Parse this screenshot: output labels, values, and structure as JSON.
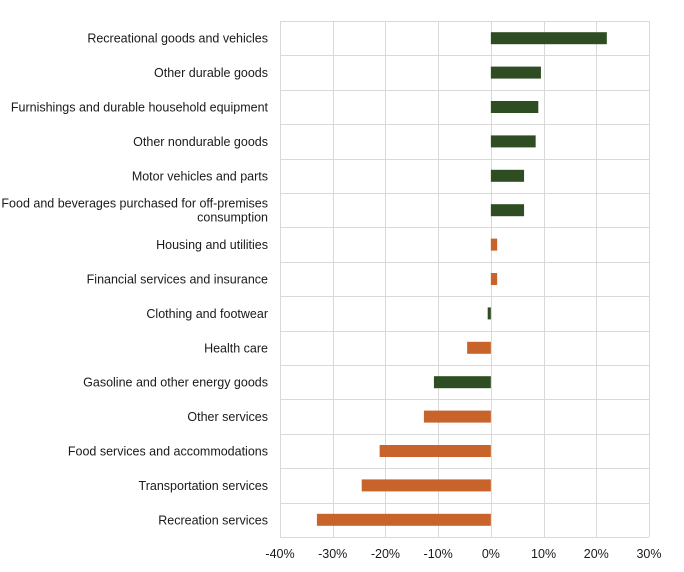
{
  "chart_data": {
    "type": "bar",
    "orientation": "horizontal",
    "title": "",
    "xlabel": "",
    "ylabel": "",
    "xlim": [
      -0.4,
      0.3
    ],
    "x_ticks": [
      -0.4,
      -0.3,
      -0.2,
      -0.1,
      0.0,
      0.1,
      0.2,
      0.3
    ],
    "x_tick_labels": [
      "-40%",
      "-30%",
      "-20%",
      "-10%",
      "0%",
      "10%",
      "20%",
      "30%"
    ],
    "grid": true,
    "legend": "none",
    "colors": {
      "goods": "#2e4d23",
      "services": "#c8632b"
    },
    "categories": [
      [
        "Recreational goods and vehicles"
      ],
      [
        "Other durable goods"
      ],
      [
        "Furnishings and durable household equipment"
      ],
      [
        "Other nondurable goods"
      ],
      [
        "Motor vehicles and parts"
      ],
      [
        "Food and beverages purchased for off-premises",
        "consumption"
      ],
      [
        "Housing and utilities"
      ],
      [
        "Financial services and insurance"
      ],
      [
        "Clothing and footwear"
      ],
      [
        "Health care"
      ],
      [
        "Gasoline and other energy goods"
      ],
      [
        "Other services"
      ],
      [
        "Food services and accommodations"
      ],
      [
        "Transportation services"
      ],
      [
        "Recreation services"
      ]
    ],
    "values": [
      0.22,
      0.095,
      0.09,
      0.085,
      0.063,
      0.063,
      0.012,
      0.012,
      -0.006,
      -0.045,
      -0.108,
      -0.127,
      -0.211,
      -0.245,
      -0.33
    ],
    "bar_colors": [
      "#2e4d23",
      "#2e4d23",
      "#2e4d23",
      "#2e4d23",
      "#2e4d23",
      "#2e4d23",
      "#c8632b",
      "#c8632b",
      "#2e4d23",
      "#c8632b",
      "#2e4d23",
      "#c8632b",
      "#c8632b",
      "#c8632b",
      "#c8632b"
    ]
  }
}
